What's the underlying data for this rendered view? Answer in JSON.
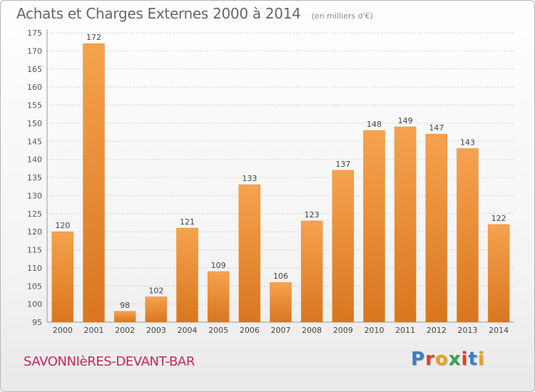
{
  "header": {
    "title": "Achats et Charges Externes 2000 à 2014",
    "subtitle": "(en milliers d'€)"
  },
  "footer": {
    "commune": "SAVONNIèRES-DEVANT-BAR",
    "logo": "Proxiti"
  },
  "colors": {
    "bar_top": "#f6a24e",
    "bar_bottom": "#d9761f",
    "commune_text": "#c8285f",
    "logo_letters": [
      "#3b7fc4",
      "#e0402a",
      "#e6a21c",
      "#3aa54a",
      "#e0402a",
      "#3b7fc4",
      "#e6a21c"
    ]
  },
  "chart_data": {
    "type": "bar",
    "title": "Achats et Charges Externes 2000 à 2014",
    "subtitle": "(en milliers d'€)",
    "categories": [
      "2000",
      "2001",
      "2002",
      "2003",
      "2004",
      "2005",
      "2006",
      "2007",
      "2008",
      "2009",
      "2010",
      "2011",
      "2012",
      "2013",
      "2014"
    ],
    "values": [
      120,
      172,
      98,
      102,
      121,
      109,
      133,
      106,
      123,
      137,
      148,
      149,
      147,
      143,
      122
    ],
    "ylim": [
      95,
      175
    ],
    "yticks": [
      95,
      100,
      105,
      110,
      115,
      120,
      125,
      130,
      135,
      140,
      145,
      150,
      155,
      160,
      165,
      170,
      175
    ],
    "grid": true,
    "data_labels": true,
    "xlabel": "",
    "ylabel": ""
  }
}
